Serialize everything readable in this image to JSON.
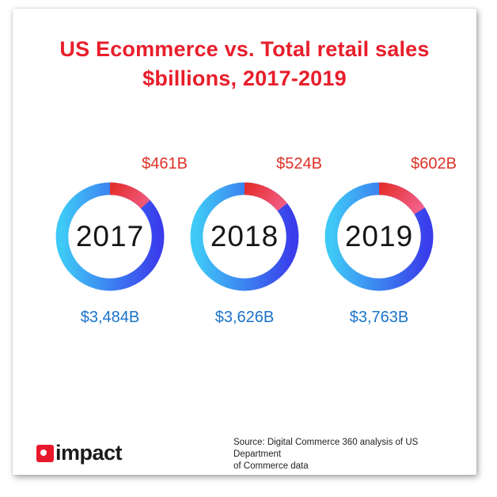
{
  "title": {
    "line1": "US Ecommerce vs. Total retail sales",
    "line2": "$billions, 2017-2019"
  },
  "chart_data": {
    "type": "pie",
    "subtype": "donut-series",
    "title": "US Ecommerce vs. Total retail sales $billions, 2017-2019",
    "legend_position": "none",
    "items": [
      {
        "year": "2017",
        "ecommerce_label": "$461B",
        "ecommerce_value": 461,
        "total_label": "$3,484B",
        "total_value": 3484
      },
      {
        "year": "2018",
        "ecommerce_label": "$524B",
        "ecommerce_value": 524,
        "total_label": "$3,626B",
        "total_value": 3626
      },
      {
        "year": "2019",
        "ecommerce_label": "$602B",
        "ecommerce_value": 602,
        "total_label": "$3,763B",
        "total_value": 3763
      }
    ],
    "colors": {
      "ecommerce_gradient": [
        "#e42d2b",
        "#f46898"
      ],
      "total_gradient": [
        "#3fc9f6",
        "#3a3deb"
      ]
    }
  },
  "footer": {
    "logo_text": "impact",
    "source_line1": "Source: Digital Commerce 360 analysis of US Department",
    "source_line2": "of Commerce data"
  },
  "colors": {
    "title": "#e81e2b",
    "ecom_label": "#dd3227",
    "total_label": "#1b73c9",
    "logo_red": "#e8192c",
    "text_dark": "#1b1b1b"
  }
}
